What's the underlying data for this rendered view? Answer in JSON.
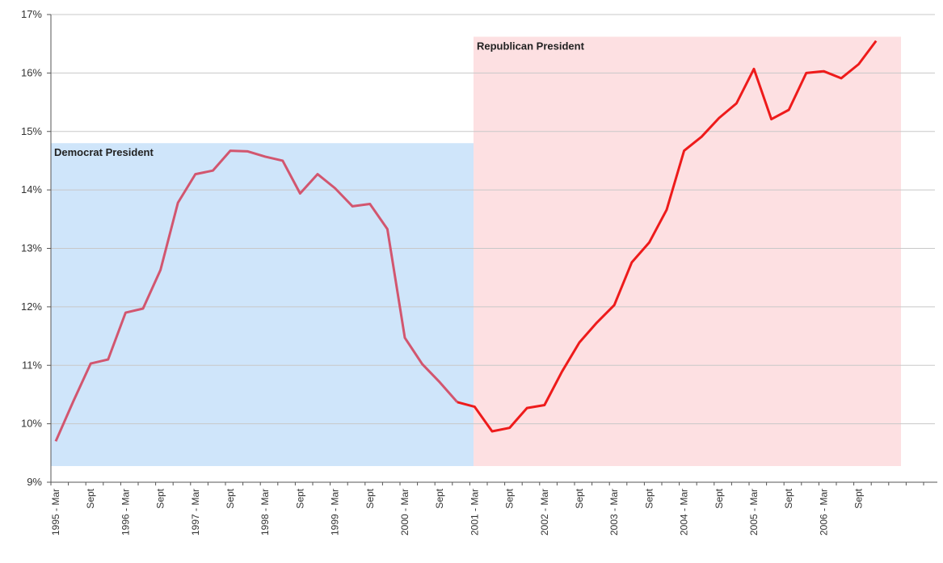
{
  "chart_data": {
    "type": "line",
    "title": "",
    "xlabel": "",
    "ylabel": "",
    "ylim": [
      9,
      17
    ],
    "y_ticks": [
      9,
      10,
      11,
      12,
      13,
      14,
      15,
      16,
      17
    ],
    "y_tick_labels": [
      "9%",
      "10%",
      "11%",
      "12%",
      "13%",
      "14%",
      "15%",
      "16%",
      "17%"
    ],
    "grid": true,
    "x_tick_labels": [
      "1995 - Mar",
      "Sept",
      "1996 - Mar",
      "Sept",
      "1997 - Mar",
      "Sept",
      "1998 - Mar",
      "Sept",
      "1999 - Mar",
      "Sept",
      "2000 - Mar",
      "Sept",
      "2001 - Mar",
      "Sept",
      "2002 - Mar",
      "Sept",
      "2003 - Mar",
      "Sept",
      "2004 - Mar",
      "Sept",
      "2005 - Mar",
      "Sept",
      "2006 - Mar",
      "Sept"
    ],
    "points_per_tick_interval": 2,
    "bands": [
      {
        "label": "Democrat President",
        "from": "1995 - Mar",
        "to": "2001 - Jan",
        "y_top": 14.8,
        "color": "#cfe5fa"
      },
      {
        "label": "Republican President",
        "from": "2001 - Jan",
        "to": "2006 - Sept+",
        "y_top": 16.62,
        "color": "#fde0e2"
      }
    ],
    "series": [
      {
        "color_democrat": "#d2566f",
        "color_republican": "#ee1b1b",
        "values": [
          9.7,
          10.38,
          11.03,
          11.1,
          11.9,
          11.97,
          12.63,
          13.78,
          14.27,
          14.33,
          14.67,
          14.66,
          14.57,
          14.5,
          13.94,
          14.27,
          14.03,
          13.72,
          13.76,
          13.33,
          11.47,
          11.02,
          10.71,
          10.37,
          10.29,
          9.87,
          9.93,
          10.27,
          10.32,
          10.89,
          11.39,
          11.73,
          12.03,
          12.76,
          13.1,
          13.66,
          14.67,
          14.91,
          15.23,
          15.48,
          16.07,
          15.21,
          15.37,
          16.0,
          16.03,
          15.91,
          16.15,
          16.55
        ],
        "party_switch_index": 24
      }
    ]
  }
}
